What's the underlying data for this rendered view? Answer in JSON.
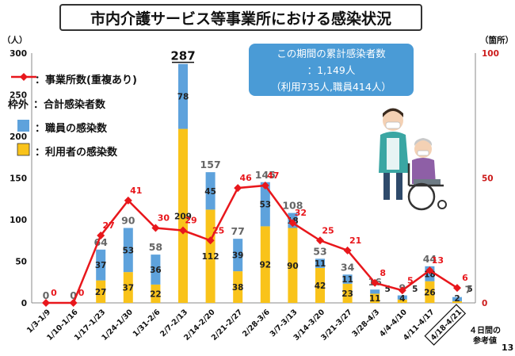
{
  "title": "市内介護サービス等事業所における感染状況",
  "total_box": {
    "line1": "この期間の累計感染者数",
    "line2": "：1,149人",
    "line3": "（利用735人,職員414人）"
  },
  "legend": {
    "line_label": "：事業所数(重複あり)",
    "total_prefix": "枠外",
    "total_label": "：合計感染者数",
    "staff_label": "：職員の感染数",
    "user_label": "：利用者の感染数"
  },
  "left_axis_title": "（人）",
  "right_axis_title": "（箇所）",
  "note_line1": "４日間の",
  "note_line2": "参考値",
  "page_number": "13",
  "colors": {
    "user": "#f9c31a",
    "staff": "#5ea2dc",
    "line": "#e8171c",
    "right_axis": "#cc1b1b"
  },
  "chart_data": {
    "type": "bar",
    "categories": [
      "1/3-1/9",
      "1/10-1/16",
      "1/17-1/23",
      "1/24-1/30",
      "1/31-2/6",
      "2/7-2/13",
      "2/14-2/20",
      "2/21-2/27",
      "2/28-3/6",
      "3/7-3/13",
      "3/14-3/20",
      "3/21-3/27",
      "3/28-4/3",
      "4/4-4/10",
      "4/11-4/17",
      "4/18-4/21"
    ],
    "series": [
      {
        "name": "利用者の感染数",
        "values": [
          0,
          0,
          27,
          37,
          22,
          209,
          112,
          38,
          92,
          90,
          42,
          23,
          11,
          4,
          26,
          2
        ]
      },
      {
        "name": "職員の感染数",
        "values": [
          0,
          0,
          37,
          53,
          36,
          78,
          45,
          39,
          53,
          18,
          11,
          11,
          5,
          5,
          18,
          5
        ]
      },
      {
        "name": "合計感染者数",
        "values": [
          0,
          0,
          64,
          90,
          58,
          287,
          157,
          77,
          145,
          108,
          53,
          34,
          16,
          9,
          44,
          7
        ]
      },
      {
        "name": "事業所数(重複あり)",
        "axis": "right",
        "values": [
          0,
          0,
          27,
          41,
          30,
          29,
          25,
          46,
          47,
          32,
          25,
          21,
          8,
          5,
          13,
          6
        ]
      }
    ],
    "ylim_left": [
      0,
      300
    ],
    "yticks_left": [
      0,
      50,
      100,
      150,
      200,
      250,
      300
    ],
    "ylim_right": [
      0,
      100
    ],
    "yticks_right": [
      0,
      50,
      100
    ],
    "boxed_category": "4/18-4/21"
  }
}
